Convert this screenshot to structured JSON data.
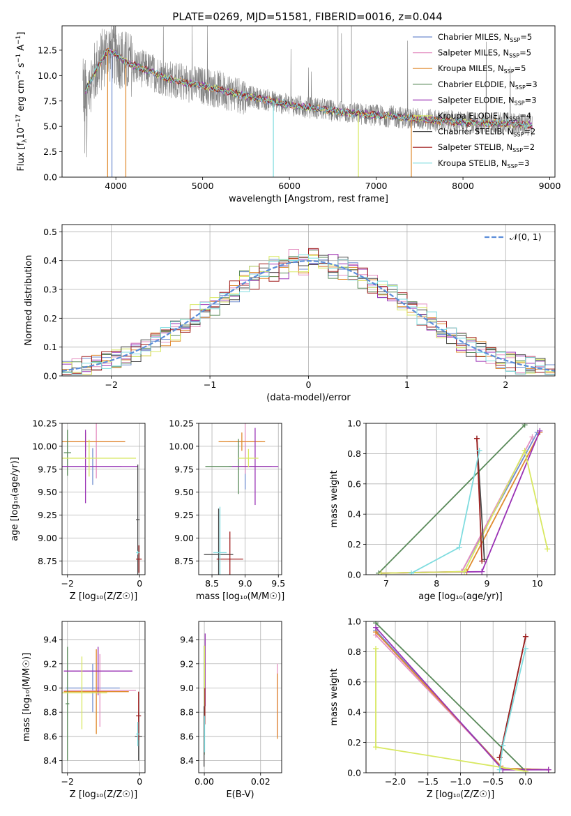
{
  "title": "PLATE=0269, MJD=51581, FIBERID=0016, z=0.044",
  "colors": {
    "spectrum": "#808080",
    "normal_curve": "#5b8dd9",
    "grid": "#b0b0b0",
    "models": [
      "#6f8ccf",
      "#e48fc1",
      "#e08a2e",
      "#5a8a5a",
      "#9a32b5",
      "#d8e860",
      "#4a4a4a",
      "#a01f1f",
      "#7fdcdf"
    ]
  },
  "models": [
    {
      "name": "Chabrier MILES",
      "nssp": "5"
    },
    {
      "name": "Salpeter MILES",
      "nssp": "5"
    },
    {
      "name": "Kroupa MILES",
      "nssp": "5"
    },
    {
      "name": "Chabrier ELODIE",
      "nssp": "3"
    },
    {
      "name": "Salpeter ELODIE",
      "nssp": "3"
    },
    {
      "name": "Kroupa ELODIE",
      "nssp": "4"
    },
    {
      "name": "Chabrier STELIB",
      "nssp": "2"
    },
    {
      "name": "Salpeter STELIB",
      "nssp": "2"
    },
    {
      "name": "Kroupa STELIB",
      "nssp": "3"
    }
  ],
  "chart_data": [
    {
      "id": "spectrum",
      "type": "line",
      "xlabel": "wavelength [Angstrom, rest frame]",
      "ylabel": "Flux [f",
      "ylabel_sub": "λ",
      "ylabel_rest": "10",
      "ylabel_exp": "−17",
      "ylabel_units": " erg cm",
      "ylabel_units_exp": "−2",
      "ylabel_units2": " s",
      "ylabel_units2_exp": "−1",
      "ylabel_units3": " A",
      "ylabel_units3_exp": "−1",
      "ylabel_end": "]",
      "xlim": [
        3380,
        9060
      ],
      "ylim": [
        0,
        14.9
      ],
      "xticks": [
        4000,
        5000,
        6000,
        7000,
        8000,
        9000
      ],
      "yticks": [
        0.0,
        2.5,
        5.0,
        7.5,
        10.0,
        12.5
      ],
      "grid": false,
      "legend": "top-right",
      "continuum": {
        "x": [
          3650,
          3800,
          3900,
          4000,
          4100,
          4200,
          4400,
          4600,
          4800,
          5000,
          5200,
          5500,
          5800,
          6000,
          6300,
          6600,
          7000,
          7400,
          7800,
          8200,
          8500,
          8800
        ],
        "y": [
          8.5,
          11.0,
          12.4,
          12.2,
          11.4,
          11.0,
          10.4,
          9.7,
          9.3,
          9.0,
          8.6,
          8.0,
          7.5,
          7.1,
          6.8,
          6.4,
          6.1,
          5.8,
          5.5,
          5.3,
          5.3,
          5.1
        ]
      },
      "spectrum_range": [
        3620,
        8800
      ],
      "dips": [
        {
          "x": 3905,
          "series": 2
        },
        {
          "x": 3955,
          "series": 0
        },
        {
          "x": 4115,
          "series": 2
        },
        {
          "x": 5815,
          "series": 8
        },
        {
          "x": 6795,
          "series": 5
        },
        {
          "x": 7405,
          "series": 2
        }
      ],
      "spikes": [
        6715,
        6560
      ]
    },
    {
      "id": "residuals",
      "type": "histogram",
      "xlabel": "(data-model)/error",
      "ylabel": "Normed distribution",
      "xlim": [
        -2.5,
        2.5
      ],
      "ylim": [
        0,
        0.525
      ],
      "xticks": [
        -2,
        -1,
        0,
        1,
        2
      ],
      "yticks": [
        0.0,
        0.1,
        0.2,
        0.3,
        0.4,
        0.5
      ],
      "grid": true,
      "legend": "top-right",
      "normal_label": "𝒩(0, 1)",
      "bin_width": 0.1
    },
    {
      "id": "age-vs-Z",
      "type": "errorbar",
      "xlabel": "Z [log₁₀(Z/Z☉)]",
      "ylabel": "age  [log₁₀(age/yr)]",
      "xlim": [
        -2.15,
        0.15
      ],
      "ylim": [
        8.6,
        10.25
      ],
      "xticks": [
        -2,
        0
      ],
      "yticks": [
        8.75,
        9.0,
        9.25,
        9.5,
        9.75,
        10.0,
        10.25
      ],
      "grid": true,
      "points": [
        {
          "s": 0,
          "x": -1.3,
          "xerr": 0.8,
          "y": 9.78,
          "yerr": 0.2
        },
        {
          "s": 1,
          "x": -1.2,
          "xerr": 0.8,
          "y": 10.05,
          "yerr": 0.4
        },
        {
          "s": 2,
          "x": -1.5,
          "xerr": 1.1,
          "y": 10.05,
          "yerr": 0.1
        },
        {
          "s": 3,
          "x": -2.0,
          "xerr": 0.1,
          "y": 9.93,
          "yerr": 0.25
        },
        {
          "s": 4,
          "x": -1.5,
          "xerr": 1.45,
          "y": 9.78,
          "yerr": 0.4
        },
        {
          "s": 5,
          "x": -1.4,
          "xerr": 1.3,
          "y": 9.87,
          "yerr": 0.2
        },
        {
          "s": 6,
          "x": -0.05,
          "xerr": 0.05,
          "y": 9.2,
          "yerr": 0.6
        },
        {
          "s": 7,
          "x": -0.02,
          "xerr": 0.08,
          "y": 8.77,
          "yerr": 0.15
        },
        {
          "s": 8,
          "x": -0.05,
          "xerr": 0.05,
          "y": 8.84,
          "yerr": 0.02
        }
      ]
    },
    {
      "id": "age-vs-mass",
      "type": "errorbar",
      "xlabel": "mass [log₁₀(M/M☉)]",
      "ylabel": "",
      "xlim": [
        8.3,
        9.55
      ],
      "ylim": [
        8.6,
        10.25
      ],
      "xticks": [
        8.5,
        9.0,
        9.5
      ],
      "yticks": [
        8.75,
        9.0,
        9.25,
        9.5,
        9.75,
        10.0,
        10.25
      ],
      "grid": true,
      "points": [
        {
          "s": 0,
          "x": 9.0,
          "xerr": 0.25,
          "y": 9.78,
          "yerr": 0.25
        },
        {
          "s": 1,
          "x": 9.0,
          "xerr": 0.25,
          "y": 10.05,
          "yerr": 0.35
        },
        {
          "s": 2,
          "x": 8.95,
          "xerr": 0.35,
          "y": 10.05,
          "yerr": 0.1
        },
        {
          "s": 3,
          "x": 8.9,
          "xerr": 0.5,
          "y": 9.78,
          "yerr": 0.3
        },
        {
          "s": 4,
          "x": 9.15,
          "xerr": 0.35,
          "y": 9.78,
          "yerr": 0.42
        },
        {
          "s": 5,
          "x": 9.05,
          "xerr": 0.15,
          "y": 9.87,
          "yerr": 0.1
        },
        {
          "s": 6,
          "x": 8.6,
          "xerr": 0.22,
          "y": 8.82,
          "yerr": 0.5
        },
        {
          "s": 7,
          "x": 8.77,
          "xerr": 0.2,
          "y": 8.77,
          "yerr": 0.3
        },
        {
          "s": 8,
          "x": 8.62,
          "xerr": 0.1,
          "y": 8.84,
          "yerr": 0.5
        }
      ]
    },
    {
      "id": "weight-vs-age",
      "type": "line",
      "xlabel": "age  [log₁₀(age/yr)]",
      "ylabel": "mass weight",
      "xlim": [
        6.6,
        10.35
      ],
      "ylim": [
        0,
        1.0
      ],
      "xticks": [
        7,
        8,
        9,
        10
      ],
      "yticks": [
        0.0,
        0.2,
        0.4,
        0.6,
        0.8,
        1.0
      ],
      "grid": true,
      "series": [
        {
          "s": 0,
          "x": [
            6.9,
            8.5,
            10.0
          ],
          "y": [
            0.01,
            0.02,
            0.94
          ]
        },
        {
          "s": 1,
          "x": [
            6.9,
            8.5,
            9.9
          ],
          "y": [
            0.01,
            0.02,
            0.91
          ]
        },
        {
          "s": 2,
          "x": [
            6.9,
            8.6,
            10.05
          ],
          "y": [
            0.01,
            0.02,
            0.94
          ]
        },
        {
          "s": 3,
          "x": [
            6.85,
            9.75
          ],
          "y": [
            0.01,
            0.99
          ]
        },
        {
          "s": 4,
          "x": [
            6.9,
            8.9,
            10.05
          ],
          "y": [
            0.01,
            0.02,
            0.95
          ]
        },
        {
          "s": 5,
          "x": [
            6.9,
            8.55,
            9.75,
            10.2
          ],
          "y": [
            0.01,
            0.02,
            0.82,
            0.17
          ]
        },
        {
          "s": 6,
          "x": [
            8.8,
            8.95
          ],
          "y": [
            0.9,
            0.1
          ]
        },
        {
          "s": 7,
          "x": [
            8.8,
            8.9
          ],
          "y": [
            0.9,
            0.09
          ]
        },
        {
          "s": 8,
          "x": [
            7.5,
            8.45,
            8.85
          ],
          "y": [
            0.01,
            0.18,
            0.82
          ]
        }
      ]
    },
    {
      "id": "mass-vs-Z",
      "type": "errorbar",
      "xlabel": "Z [log₁₀(Z/Z☉)]",
      "ylabel": "mass [log₁₀(M/M☉)]",
      "xlim": [
        -2.15,
        0.15
      ],
      "ylim": [
        8.3,
        9.55
      ],
      "xticks": [
        -2,
        0
      ],
      "yticks": [
        8.4,
        8.6,
        8.8,
        9.0,
        9.2,
        9.4
      ],
      "grid": true,
      "points": [
        {
          "s": 0,
          "x": -1.3,
          "xerr": 0.75,
          "y": 9.0,
          "yerr": 0.2
        },
        {
          "s": 1,
          "x": -1.1,
          "xerr": 1.0,
          "y": 8.98,
          "yerr": 0.3
        },
        {
          "s": 2,
          "x": -1.2,
          "xerr": 0.9,
          "y": 8.97,
          "yerr": 0.35
        },
        {
          "s": 3,
          "x": -2.0,
          "xerr": 0.05,
          "y": 8.87,
          "yerr": 0.47
        },
        {
          "s": 4,
          "x": -1.15,
          "xerr": 0.95,
          "y": 9.14,
          "yerr": 0.2
        },
        {
          "s": 5,
          "x": -1.6,
          "xerr": 0.7,
          "y": 8.96,
          "yerr": 0.3
        },
        {
          "s": 6,
          "x": -0.03,
          "xerr": 0.1,
          "y": 8.6,
          "yerr": 0.2
        },
        {
          "s": 7,
          "x": -0.03,
          "xerr": 0.07,
          "y": 8.77,
          "yerr": 0.2
        },
        {
          "s": 8,
          "x": -0.05,
          "xerr": 0.05,
          "y": 8.62,
          "yerr": 0.1
        }
      ]
    },
    {
      "id": "mass-vs-EBV",
      "type": "errorbar",
      "xlabel": "E(B-V)",
      "ylabel": "",
      "xlim": [
        -0.002,
        0.0275
      ],
      "ylim": [
        8.3,
        9.55
      ],
      "xticks": [
        0.0,
        0.02
      ],
      "yticks": [
        8.4,
        8.6,
        8.8,
        9.0,
        9.2,
        9.4
      ],
      "grid": true,
      "points": [
        {
          "s": 0,
          "x": 0.0002,
          "xerr": 0,
          "y": 8.95,
          "yerr": 0.2
        },
        {
          "s": 1,
          "x": 0.026,
          "xerr": 0,
          "y": 8.9,
          "yerr": 0.3
        },
        {
          "s": 2,
          "x": 0.026,
          "xerr": 0,
          "y": 8.85,
          "yerr": 0.27
        },
        {
          "s": 3,
          "x": 0.0,
          "xerr": 0,
          "y": 8.9,
          "yerr": 0.45
        },
        {
          "s": 4,
          "x": 0.0003,
          "xerr": 0,
          "y": 9.15,
          "yerr": 0.3
        },
        {
          "s": 5,
          "x": 0.0001,
          "xerr": 0,
          "y": 9.05,
          "yerr": 0.3
        },
        {
          "s": 6,
          "x": -0.0001,
          "xerr": 0,
          "y": 8.6,
          "yerr": 0.25
        },
        {
          "s": 7,
          "x": 0.0002,
          "xerr": 0,
          "y": 8.85,
          "yerr": 0.15
        },
        {
          "s": 8,
          "x": 0.0001,
          "xerr": 0,
          "y": 8.62,
          "yerr": 0.15
        }
      ]
    },
    {
      "id": "weight-vs-Z",
      "type": "line",
      "xlabel": "Z [log₁₀(Z/Z☉)]",
      "ylabel": "mass weight",
      "xlim": [
        -2.45,
        0.45
      ],
      "ylim": [
        0,
        1.0
      ],
      "xticks": [
        -2.0,
        -1.5,
        -1.0,
        -0.5,
        0.0
      ],
      "yticks": [
        0.0,
        0.2,
        0.4,
        0.6,
        0.8,
        1.0
      ],
      "grid": true,
      "series": [
        {
          "s": 0,
          "x": [
            -2.3,
            -0.35,
            0.35
          ],
          "y": [
            0.94,
            0.03,
            0.02
          ]
        },
        {
          "s": 1,
          "x": [
            -2.3,
            -0.35,
            0.35
          ],
          "y": [
            0.91,
            0.03,
            0.02
          ]
        },
        {
          "s": 2,
          "x": [
            -2.3,
            -0.35,
            0.35
          ],
          "y": [
            0.93,
            0.03,
            0.02
          ]
        },
        {
          "s": 3,
          "x": [
            -2.3,
            0.0
          ],
          "y": [
            0.99,
            0.01
          ]
        },
        {
          "s": 4,
          "x": [
            -2.3,
            -0.35,
            0.35
          ],
          "y": [
            0.96,
            0.02,
            0.02
          ]
        },
        {
          "s": 5,
          "x": [
            -2.3,
            -2.3,
            0.0
          ],
          "y": [
            0.82,
            0.17,
            0.01
          ]
        },
        {
          "s": 6,
          "x": [
            -0.4,
            0.0
          ],
          "y": [
            0.1,
            0.9
          ]
        },
        {
          "s": 7,
          "x": [
            -0.4,
            0.0
          ],
          "y": [
            0.1,
            0.9
          ]
        },
        {
          "s": 8,
          "x": [
            -0.4,
            -0.35,
            0.0
          ],
          "y": [
            0.02,
            0.18,
            0.82
          ]
        }
      ]
    }
  ]
}
